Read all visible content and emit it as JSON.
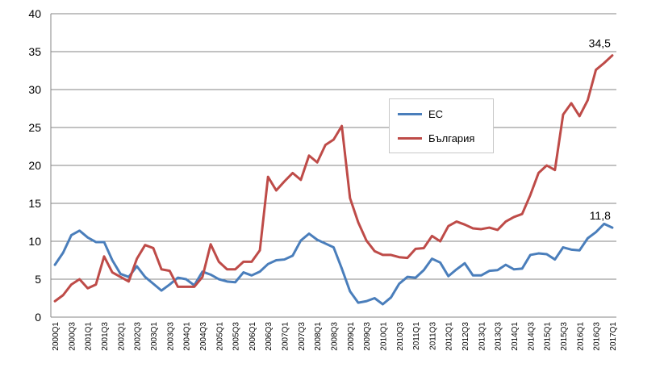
{
  "chart_data": {
    "type": "line",
    "ylim": [
      0,
      40
    ],
    "yticks": [
      "0",
      "5",
      "10",
      "15",
      "20",
      "25",
      "30",
      "35",
      "40"
    ],
    "categories": [
      "2000Q1",
      "2000Q2",
      "2000Q3",
      "2000Q4",
      "2001Q1",
      "2001Q2",
      "2001Q3",
      "2001Q4",
      "2002Q1",
      "2002Q2",
      "2002Q3",
      "2002Q4",
      "2003Q1",
      "2003Q2",
      "2003Q3",
      "2003Q4",
      "2004Q1",
      "2004Q2",
      "2004Q3",
      "2004Q4",
      "2005Q1",
      "2005Q2",
      "2005Q3",
      "2005Q4",
      "2006Q1",
      "2006Q2",
      "2006Q3",
      "2006Q4",
      "2007Q1",
      "2007Q2",
      "2007Q3",
      "2007Q4",
      "2008Q1",
      "2008Q2",
      "2008Q3",
      "2008Q4",
      "2009Q1",
      "2009Q2",
      "2009Q3",
      "2009Q4",
      "2010Q1",
      "2010Q2",
      "2010Q3",
      "2010Q4",
      "2011Q1",
      "2011Q2",
      "2011Q3",
      "2011Q4",
      "2012Q1",
      "2012Q2",
      "2012Q3",
      "2012Q4",
      "2013Q1",
      "2013Q2",
      "2013Q3",
      "2013Q4",
      "2014Q1",
      "2014Q2",
      "2014Q3",
      "2014Q4",
      "2015Q1",
      "2015Q2",
      "2015Q3",
      "2015Q4",
      "2016Q1",
      "2016Q2",
      "2016Q3",
      "2016Q4",
      "2017Q1"
    ],
    "x_tick_labels": [
      "2000Q1",
      "2000Q3",
      "2001Q1",
      "2001Q3",
      "2002Q1",
      "2002Q3",
      "2003Q1",
      "2003Q3",
      "2004Q1",
      "2004Q3",
      "2005Q1",
      "2005Q3",
      "2006Q1",
      "2006Q3",
      "2007Q1",
      "2007Q3",
      "2008Q1",
      "2008Q3",
      "2009Q1",
      "2009Q3",
      "2010Q1",
      "2010Q3",
      "2011Q1",
      "2011Q3",
      "2012Q1",
      "2012Q3",
      "2013Q1",
      "2013Q3",
      "2014Q1",
      "2014Q3",
      "2015Q1",
      "2015Q3",
      "2016Q1",
      "2016Q3",
      "2017Q1"
    ],
    "series": [
      {
        "name": "ЕС",
        "color": "#4a7ebb",
        "values": [
          6.9,
          8.5,
          10.8,
          11.4,
          10.5,
          9.9,
          9.9,
          7.5,
          5.7,
          5.3,
          6.7,
          5.3,
          4.4,
          3.5,
          4.3,
          5.2,
          5.0,
          4.2,
          6.0,
          5.6,
          5.0,
          4.7,
          4.6,
          5.9,
          5.5,
          6.0,
          7.0,
          7.5,
          7.6,
          8.1,
          10.1,
          11.0,
          10.2,
          9.7,
          9.2,
          6.4,
          3.4,
          1.9,
          2.1,
          2.5,
          1.7,
          2.6,
          4.4,
          5.3,
          5.2,
          6.2,
          7.7,
          7.2,
          5.4,
          6.3,
          7.1,
          5.5,
          5.5,
          6.1,
          6.2,
          6.9,
          6.3,
          6.4,
          8.2,
          8.4,
          8.3,
          7.6,
          9.2,
          8.9,
          8.8,
          10.4,
          11.2,
          12.3,
          11.8
        ]
      },
      {
        "name": "България",
        "color": "#be4b48",
        "values": [
          2.1,
          2.9,
          4.3,
          5.0,
          3.8,
          4.3,
          8.0,
          5.9,
          5.3,
          4.7,
          7.7,
          9.5,
          9.1,
          6.3,
          6.1,
          4.0,
          4.0,
          4.0,
          5.3,
          9.6,
          7.3,
          6.3,
          6.3,
          7.3,
          7.3,
          8.8,
          18.5,
          16.7,
          17.9,
          19.0,
          18.1,
          21.3,
          20.4,
          22.7,
          23.4,
          25.2,
          15.7,
          12.5,
          10.1,
          8.7,
          8.2,
          8.2,
          7.9,
          7.8,
          9.0,
          9.1,
          10.7,
          10.0,
          12.0,
          12.6,
          12.2,
          11.7,
          11.6,
          11.8,
          11.5,
          12.6,
          13.2,
          13.6,
          16.1,
          19.0,
          20.0,
          19.4,
          26.7,
          28.2,
          26.5,
          28.6,
          32.6,
          33.5,
          34.5
        ]
      }
    ],
    "annotations": [
      {
        "label": "34,5",
        "series": 1,
        "index": 68
      },
      {
        "label": "11,8",
        "series": 0,
        "index": 68
      }
    ],
    "legend": "right-middle",
    "grid": "horizontal"
  }
}
